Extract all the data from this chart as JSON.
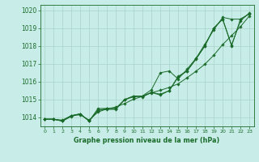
{
  "title": "Graphe pression niveau de la mer (hPa)",
  "background_color": "#c8ece8",
  "grid_color": "#a8d4c8",
  "line_color": "#1a6b2a",
  "xlim": [
    -0.5,
    23.5
  ],
  "ylim": [
    1013.5,
    1020.3
  ],
  "yticks": [
    1014,
    1015,
    1016,
    1017,
    1018,
    1019,
    1020
  ],
  "xticks": [
    0,
    1,
    2,
    3,
    4,
    5,
    6,
    7,
    8,
    9,
    10,
    11,
    12,
    13,
    14,
    15,
    16,
    17,
    18,
    19,
    20,
    21,
    22,
    23
  ],
  "x": [
    0,
    1,
    2,
    3,
    4,
    5,
    6,
    7,
    8,
    9,
    10,
    11,
    12,
    13,
    14,
    15,
    16,
    17,
    18,
    19,
    20,
    21,
    22,
    23
  ],
  "series": [
    [
      1013.9,
      1013.9,
      1013.85,
      1014.1,
      1014.15,
      1013.85,
      1014.3,
      1014.48,
      1014.58,
      1014.78,
      1015.02,
      1015.18,
      1015.38,
      1015.52,
      1015.68,
      1015.88,
      1016.22,
      1016.58,
      1016.98,
      1017.48,
      1018.08,
      1018.58,
      1019.08,
      1019.68
    ],
    [
      1013.9,
      1013.9,
      1013.8,
      1014.1,
      1014.2,
      1013.8,
      1014.4,
      1014.5,
      1014.5,
      1015.0,
      1015.2,
      1015.15,
      1015.4,
      1015.3,
      1015.5,
      1016.3,
      1016.6,
      1017.3,
      1018.1,
      1018.9,
      1019.6,
      1019.5,
      1019.5,
      1019.8
    ],
    [
      1013.9,
      1013.9,
      1013.8,
      1014.05,
      1014.2,
      1013.8,
      1014.4,
      1014.45,
      1014.45,
      1015.0,
      1015.15,
      1015.2,
      1015.4,
      1015.25,
      1015.5,
      1016.25,
      1016.6,
      1017.25,
      1018.0,
      1019.0,
      1019.5,
      1018.0,
      1019.5,
      1019.8
    ],
    [
      1013.9,
      1013.9,
      1013.8,
      1014.1,
      1014.2,
      1013.8,
      1014.5,
      1014.5,
      1014.5,
      1015.0,
      1015.2,
      1015.2,
      1015.55,
      1016.5,
      1016.6,
      1016.15,
      1016.7,
      1017.3,
      1018.0,
      1019.0,
      1019.5,
      1018.05,
      1019.4,
      1019.85
    ]
  ]
}
